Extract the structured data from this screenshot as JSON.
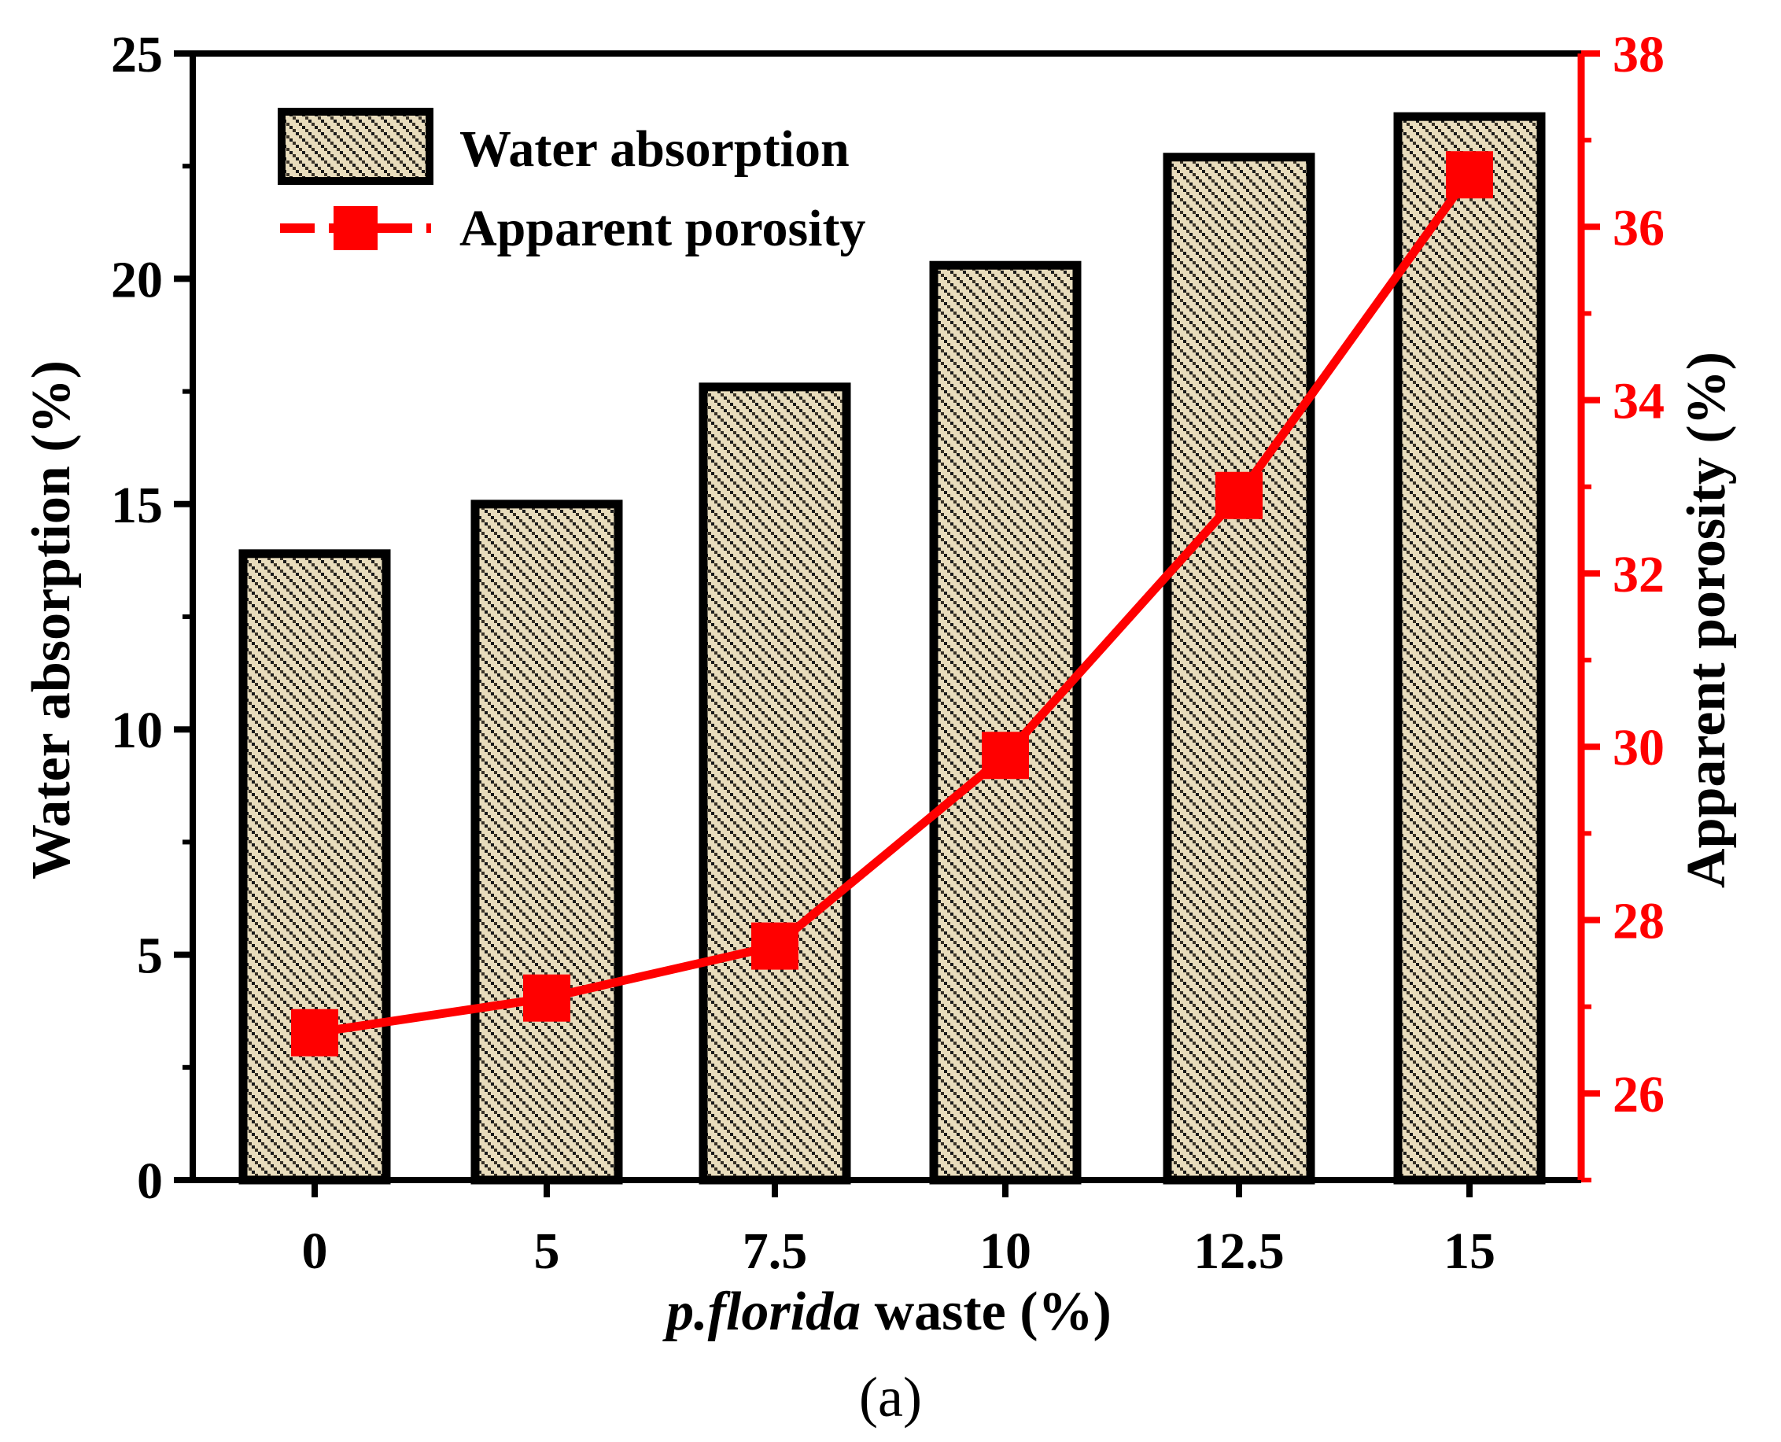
{
  "chart_data": {
    "type": "bar+line",
    "categories": [
      "0",
      "5",
      "7.5",
      "10",
      "12.5",
      "15"
    ],
    "series": [
      {
        "name": "Water absorption",
        "type": "bar",
        "axis": "left",
        "values": [
          13.9,
          15.0,
          17.6,
          20.3,
          22.7,
          23.6
        ]
      },
      {
        "name": "Apparent porosity",
        "type": "line",
        "axis": "right",
        "values": [
          26.7,
          27.1,
          27.7,
          29.9,
          32.9,
          36.6
        ]
      }
    ],
    "left_axis": {
      "label": "Water absorption (%)",
      "ylim": [
        0,
        25
      ],
      "ticks": [
        "0",
        "5",
        "10",
        "15",
        "20",
        "25"
      ]
    },
    "right_axis": {
      "label": "Apparent porosity (%)",
      "ylim": [
        25,
        38
      ],
      "ticks": [
        "26",
        "28",
        "30",
        "32",
        "34",
        "36",
        "38"
      ]
    },
    "x_axis": {
      "label_italic": "p.florida",
      "label_rest": " waste (%)"
    },
    "legend": {
      "position": "top-left",
      "entries": [
        "Water absorption",
        "Apparent porosity"
      ]
    },
    "caption": "(a)"
  },
  "colors": {
    "bar_fill": "#e8dcbc",
    "bar_pattern": "#1a1a1a",
    "bar_edge": "#000000",
    "line": "#ff0000",
    "right_axis": "#ff0000"
  }
}
